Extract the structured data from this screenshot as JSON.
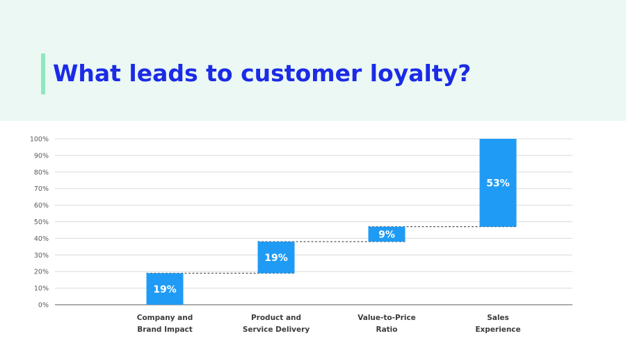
{
  "slide": {
    "title": "What leads to customer loyalty?"
  },
  "colors": {
    "header_background": "#ebf8f3",
    "accent_bar": "#8ee8bd",
    "title": "#1b2be6",
    "bar": "#1f9bf5",
    "gridline": "#d9d9d9"
  },
  "chart_data": {
    "type": "bar",
    "subtype": "waterfall",
    "categories": [
      [
        "Company and",
        "Brand Impact"
      ],
      [
        "Product and",
        "Service Delivery"
      ],
      [
        "Value-to-Price",
        "Ratio"
      ],
      [
        "Sales",
        "Experience"
      ]
    ],
    "values": [
      19,
      19,
      9,
      53
    ],
    "data_labels": [
      "19%",
      "19%",
      "9%",
      "53%"
    ],
    "ylim": [
      0,
      100
    ],
    "yticks": [
      0,
      10,
      20,
      30,
      40,
      50,
      60,
      70,
      80,
      90,
      100
    ],
    "ytick_labels": [
      "0%",
      "10%",
      "20%",
      "30%",
      "40%",
      "50%",
      "60%",
      "70%",
      "80%",
      "90%",
      "100%"
    ],
    "grid": true,
    "connector_lines": "dashed",
    "legend": "none",
    "title": "",
    "xlabel": "",
    "ylabel": ""
  }
}
